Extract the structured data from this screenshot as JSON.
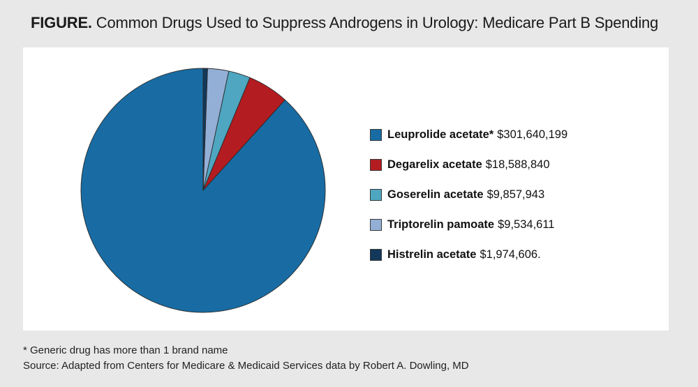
{
  "title": {
    "label": "FIGURE.",
    "text": "Common Drugs Used to Suppress Androgens in Urology: Medicare Part B Spending"
  },
  "chart_data": {
    "type": "pie",
    "title": "Common Drugs Used to Suppress Androgens in Urology: Medicare Part B Spending",
    "legend_position": "right",
    "slices": [
      {
        "name": "Leuprolide acetate*",
        "value": 301640199,
        "value_label": "$301,640,199",
        "color": "#186ca3"
      },
      {
        "name": "Degarelix acetate",
        "value": 18588840,
        "value_label": "$18,588,840",
        "color": "#b31c20"
      },
      {
        "name": "Goserelin acetate",
        "value": 9857943,
        "value_label": "$9,857,943",
        "color": "#4ea6c0"
      },
      {
        "name": "Triptorelin pamoate",
        "value": 9534611,
        "value_label": "$9,534,611",
        "color": "#93afd6"
      },
      {
        "name": "Histrelin acetate",
        "value": 1974606,
        "value_label": "$1,974,606.",
        "color": "#12385a"
      }
    ]
  },
  "footnotes": {
    "note": "* Generic drug has more than 1 brand name",
    "source": "Source: Adapted from Centers for Medicare & Medicaid Services data by Robert A. Dowling, MD"
  }
}
